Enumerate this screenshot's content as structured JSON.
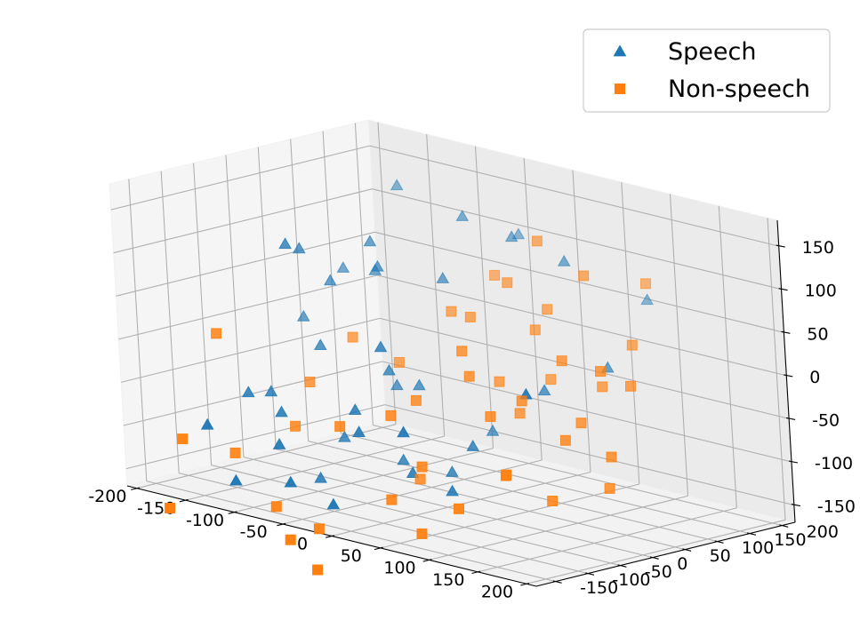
{
  "chart_data": {
    "type": "scatter",
    "projection": "3d",
    "title": "",
    "xlabel": "",
    "ylabel": "",
    "zlabel": "",
    "grid": true,
    "legend_placement": "top-right",
    "xlim": [
      -210,
      210
    ],
    "ylim": [
      -180,
      220
    ],
    "zlim": [
      -170,
      180
    ],
    "x_ticks": [
      -200,
      -150,
      -100,
      -50,
      0,
      50,
      100,
      150,
      200
    ],
    "y_ticks": [
      -150,
      -100,
      -50,
      0,
      50,
      100,
      150,
      200
    ],
    "z_ticks": [
      -150,
      -100,
      -50,
      0,
      50,
      100,
      150
    ],
    "series": [
      {
        "name": "Speech",
        "marker": "triangle",
        "color": "#1f77b4",
        "points": [
          [
            -150,
            170,
            130
          ],
          [
            -70,
            150,
            120
          ],
          [
            -20,
            150,
            110
          ],
          [
            40,
            140,
            100
          ],
          [
            -40,
            190,
            100
          ],
          [
            -120,
            80,
            90
          ],
          [
            -100,
            60,
            70
          ],
          [
            -140,
            -20,
            100
          ],
          [
            -160,
            30,
            80
          ],
          [
            -60,
            100,
            60
          ],
          [
            -130,
            100,
            50
          ],
          [
            -150,
            60,
            40
          ],
          [
            -40,
            -30,
            10
          ],
          [
            90,
            190,
            60
          ],
          [
            170,
            -120,
            30
          ],
          [
            -170,
            110,
            40
          ],
          [
            -180,
            60,
            -10
          ],
          [
            -130,
            10,
            -20
          ],
          [
            -60,
            10,
            -30
          ],
          [
            -80,
            50,
            -60
          ],
          [
            -50,
            -60,
            -60
          ],
          [
            -160,
            -60,
            -70
          ],
          [
            -120,
            -70,
            -80
          ],
          [
            -150,
            -140,
            -90
          ],
          [
            -90,
            -120,
            -100
          ],
          [
            -20,
            -100,
            -70
          ],
          [
            -30,
            -20,
            -120
          ],
          [
            20,
            -80,
            -110
          ],
          [
            -10,
            -160,
            -140
          ],
          [
            60,
            -80,
            -120
          ],
          [
            -110,
            -160,
            -140
          ],
          [
            -60,
            -150,
            -130
          ],
          [
            20,
            -20,
            -120
          ],
          [
            -90,
            -20,
            -110
          ],
          [
            50,
            -30,
            -80
          ],
          [
            10,
            60,
            -90
          ],
          [
            -50,
            40,
            -50
          ],
          [
            120,
            80,
            10
          ],
          [
            -90,
            -60,
            -150
          ],
          [
            40,
            -120,
            -50
          ],
          [
            80,
            40,
            -20
          ],
          [
            -150,
            -40,
            -70
          ]
        ]
      },
      {
        "name": "Non-speech",
        "marker": "square",
        "color": "#ff7f0e",
        "points": [
          [
            20,
            130,
            120
          ],
          [
            80,
            110,
            100
          ],
          [
            110,
            160,
            90
          ],
          [
            -40,
            150,
            60
          ],
          [
            0,
            110,
            70
          ],
          [
            40,
            90,
            30
          ],
          [
            100,
            40,
            20
          ],
          [
            140,
            90,
            40
          ],
          [
            120,
            70,
            -10
          ],
          [
            170,
            40,
            10
          ],
          [
            180,
            -10,
            -60
          ],
          [
            190,
            -30,
            -90
          ],
          [
            -20,
            80,
            30
          ],
          [
            -60,
            110,
            20
          ],
          [
            10,
            20,
            10
          ],
          [
            30,
            0,
            -10
          ],
          [
            70,
            -30,
            -40
          ],
          [
            90,
            -10,
            -20
          ],
          [
            140,
            -20,
            -50
          ],
          [
            -150,
            20,
            -70
          ],
          [
            -190,
            -60,
            -10
          ],
          [
            -120,
            -50,
            -100
          ],
          [
            -60,
            -70,
            -80
          ],
          [
            -20,
            -50,
            -60
          ],
          [
            30,
            -80,
            -100
          ],
          [
            90,
            -40,
            -100
          ],
          [
            150,
            -60,
            -110
          ],
          [
            100,
            -130,
            -120
          ],
          [
            -170,
            -150,
            -110
          ],
          [
            -90,
            -130,
            -170
          ],
          [
            -40,
            -140,
            -180
          ],
          [
            10,
            -100,
            -140
          ],
          [
            60,
            -130,
            -160
          ],
          [
            -160,
            -190,
            -180
          ],
          [
            -50,
            -170,
            -190
          ],
          [
            -10,
            -190,
            -210
          ],
          [
            60,
            30,
            -50
          ],
          [
            20,
            60,
            -30
          ],
          [
            130,
            20,
            -40
          ],
          [
            60,
            80,
            -20
          ],
          [
            -90,
            70,
            -40
          ],
          [
            -130,
            60,
            -20
          ],
          [
            -150,
            -100,
            -130
          ],
          [
            0,
            -40,
            -130
          ],
          [
            110,
            -70,
            -90
          ],
          [
            -20,
            -10,
            -50
          ],
          [
            40,
            110,
            50
          ],
          [
            160,
            10,
            30
          ]
        ]
      }
    ]
  }
}
